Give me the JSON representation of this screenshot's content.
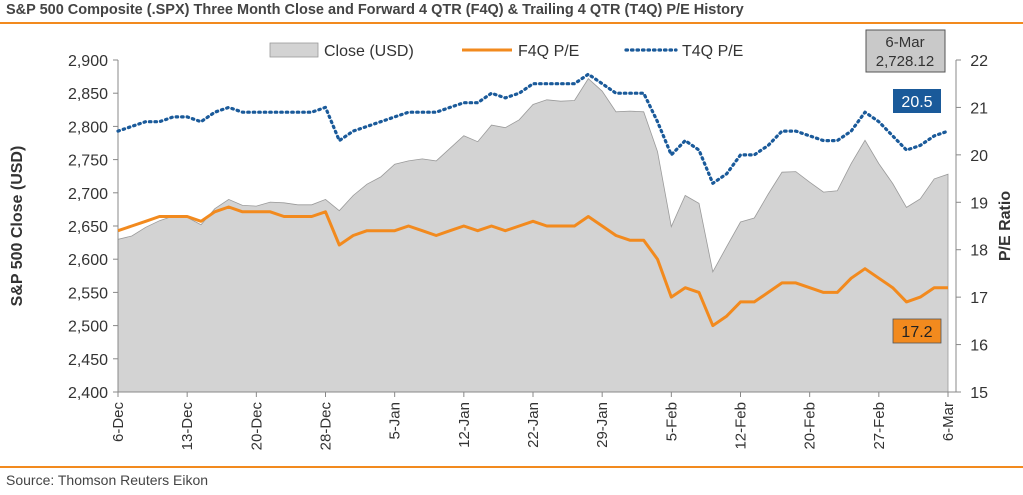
{
  "header": {
    "title": "S&P 500 Composite (.SPX) Three Month Close and Forward 4 QTR (F4Q) & Trailing 4 QTR (T4Q) P/E History"
  },
  "footer": {
    "source": "Source: Thomson Reuters Eikon"
  },
  "colors": {
    "close_fill": "#d3d3d3",
    "close_stroke": "#9a9a9a",
    "f4q": "#f28a1e",
    "t4q": "#1a5a9a",
    "rule": "#f28a1e",
    "text": "#444444"
  },
  "chart_data": {
    "type": "area",
    "title": "S&P 500 Composite (.SPX) Three Month Close and Forward 4 QTR (F4Q) & Trailing 4 QTR (T4Q) P/E History",
    "ylabel": "S&P 500 Close (USD)",
    "y2label": "P/E Ratio",
    "ylim": [
      2400,
      2900
    ],
    "y2lim": [
      15,
      22
    ],
    "yticks": [
      "2,400",
      "2,450",
      "2,500",
      "2,550",
      "2,600",
      "2,650",
      "2,700",
      "2,750",
      "2,800",
      "2,850",
      "2,900"
    ],
    "y2ticks": [
      "15",
      "16",
      "17",
      "18",
      "19",
      "20",
      "21",
      "22"
    ],
    "xticks": [
      "6-Dec",
      "13-Dec",
      "20-Dec",
      "28-Dec",
      "5-Jan",
      "12-Jan",
      "22-Jan",
      "29-Jan",
      "5-Feb",
      "12-Feb",
      "20-Feb",
      "27-Feb",
      "6-Mar"
    ],
    "legend": {
      "placement": "top",
      "items": [
        "Close (USD)",
        "F4Q P/E",
        "T4Q P/E"
      ]
    },
    "grid": false,
    "callouts": {
      "last_date": "6-Mar",
      "last_close": "2,728.12",
      "last_t4q": "20.5",
      "last_f4q": "17.2"
    },
    "series": [
      {
        "name": "Close (USD)",
        "axis": "left",
        "style": "area",
        "values": [
          2630,
          2635,
          2648,
          2658,
          2665,
          2663,
          2652,
          2676,
          2690,
          2681,
          2680,
          2686,
          2685,
          2682,
          2682,
          2690,
          2673,
          2696,
          2713,
          2724,
          2743,
          2748,
          2751,
          2748,
          2767,
          2786,
          2777,
          2802,
          2798,
          2810,
          2833,
          2840,
          2838,
          2839,
          2872,
          2853,
          2822,
          2823,
          2822,
          2762,
          2649,
          2696,
          2684,
          2581,
          2619,
          2656,
          2662,
          2698,
          2731,
          2732,
          2716,
          2701,
          2703,
          2744,
          2779,
          2744,
          2714,
          2678,
          2691,
          2721,
          2728
        ]
      },
      {
        "name": "F4Q P/E",
        "axis": "right",
        "style": "solid",
        "values": [
          18.4,
          18.5,
          18.6,
          18.7,
          18.7,
          18.7,
          18.6,
          18.8,
          18.9,
          18.8,
          18.8,
          18.8,
          18.7,
          18.7,
          18.7,
          18.8,
          18.1,
          18.3,
          18.4,
          18.4,
          18.4,
          18.5,
          18.4,
          18.3,
          18.4,
          18.5,
          18.4,
          18.5,
          18.4,
          18.5,
          18.6,
          18.5,
          18.5,
          18.5,
          18.7,
          18.5,
          18.3,
          18.2,
          18.2,
          17.8,
          17.0,
          17.2,
          17.1,
          16.4,
          16.6,
          16.9,
          16.9,
          17.1,
          17.3,
          17.3,
          17.2,
          17.1,
          17.1,
          17.4,
          17.6,
          17.4,
          17.2,
          16.9,
          17.0,
          17.2,
          17.2
        ]
      },
      {
        "name": "T4Q P/E",
        "axis": "right",
        "style": "dotted",
        "values": [
          20.5,
          20.6,
          20.7,
          20.7,
          20.8,
          20.8,
          20.7,
          20.9,
          21.0,
          20.9,
          20.9,
          20.9,
          20.9,
          20.9,
          20.9,
          21.0,
          20.3,
          20.5,
          20.6,
          20.7,
          20.8,
          20.9,
          20.9,
          20.9,
          21.0,
          21.1,
          21.1,
          21.3,
          21.2,
          21.3,
          21.5,
          21.5,
          21.5,
          21.5,
          21.7,
          21.5,
          21.3,
          21.3,
          21.3,
          20.7,
          20.0,
          20.3,
          20.1,
          19.4,
          19.6,
          20.0,
          20.0,
          20.2,
          20.5,
          20.5,
          20.4,
          20.3,
          20.3,
          20.5,
          20.9,
          20.7,
          20.4,
          20.1,
          20.2,
          20.4,
          20.5
        ]
      }
    ]
  }
}
